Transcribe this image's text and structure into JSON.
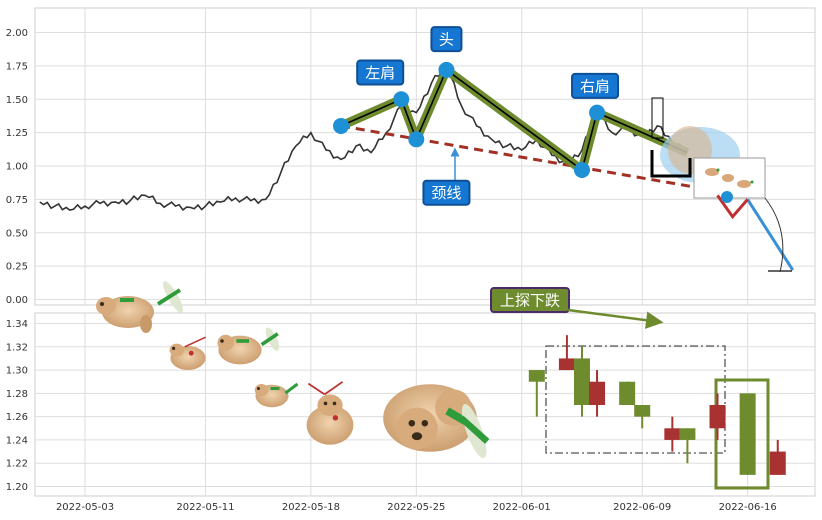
{
  "chart_data": [
    {
      "type": "line",
      "panel": "top",
      "title": "",
      "xlabel": "",
      "ylabel": "",
      "ylim": [
        0,
        2.2
      ],
      "y_ticks": [
        "0.00",
        "0.25",
        "0.50",
        "0.75",
        "1.00",
        "1.25",
        "1.50",
        "1.75",
        "2.00"
      ],
      "grid": true,
      "price_line_color": "#333333",
      "price_series": [
        {
          "x": "2022-04-30",
          "y": 0.73
        },
        {
          "x": "2022-05-01",
          "y": 0.7
        },
        {
          "x": "2022-05-02",
          "y": 0.67
        },
        {
          "x": "2022-05-03",
          "y": 0.7
        },
        {
          "x": "2022-05-04",
          "y": 0.72
        },
        {
          "x": "2022-05-05",
          "y": 0.73
        },
        {
          "x": "2022-05-06",
          "y": 0.74
        },
        {
          "x": "2022-05-07",
          "y": 0.78
        },
        {
          "x": "2022-05-08",
          "y": 0.72
        },
        {
          "x": "2022-05-09",
          "y": 0.7
        },
        {
          "x": "2022-05-10",
          "y": 0.69
        },
        {
          "x": "2022-05-11",
          "y": 0.7
        },
        {
          "x": "2022-05-12",
          "y": 0.73
        },
        {
          "x": "2022-05-13",
          "y": 0.76
        },
        {
          "x": "2022-05-14",
          "y": 0.74
        },
        {
          "x": "2022-05-15",
          "y": 0.75
        },
        {
          "x": "2022-05-16",
          "y": 0.95
        },
        {
          "x": "2022-05-17",
          "y": 1.15
        },
        {
          "x": "2022-05-18",
          "y": 1.25
        },
        {
          "x": "2022-05-19",
          "y": 1.12
        },
        {
          "x": "2022-05-20",
          "y": 1.05
        },
        {
          "x": "2022-05-21",
          "y": 1.15
        },
        {
          "x": "2022-05-22",
          "y": 1.1
        },
        {
          "x": "2022-05-23",
          "y": 1.25
        },
        {
          "x": "2022-05-24",
          "y": 1.45
        },
        {
          "x": "2022-05-25",
          "y": 1.4
        },
        {
          "x": "2022-05-26",
          "y": 1.62
        },
        {
          "x": "2022-05-27",
          "y": 1.75
        },
        {
          "x": "2022-05-28",
          "y": 1.45
        },
        {
          "x": "2022-05-29",
          "y": 1.3
        },
        {
          "x": "2022-05-30",
          "y": 1.2
        },
        {
          "x": "2022-05-31",
          "y": 1.15
        },
        {
          "x": "2022-06-01",
          "y": 1.12
        },
        {
          "x": "2022-06-02",
          "y": 1.2
        },
        {
          "x": "2022-06-03",
          "y": 1.08
        },
        {
          "x": "2022-06-04",
          "y": 1.02
        },
        {
          "x": "2022-06-05",
          "y": 1.12
        },
        {
          "x": "2022-06-06",
          "y": 1.4
        },
        {
          "x": "2022-06-07",
          "y": 1.25
        },
        {
          "x": "2022-06-08",
          "y": 1.28
        },
        {
          "x": "2022-06-09",
          "y": 1.22
        },
        {
          "x": "2022-06-10",
          "y": 1.3
        },
        {
          "x": "2022-06-11",
          "y": 1.18
        },
        {
          "x": "2022-06-12",
          "y": 1.1
        }
      ],
      "pattern_points": [
        {
          "x": "2022-05-20",
          "y": 1.3
        },
        {
          "x": "2022-05-24",
          "y": 1.5
        },
        {
          "x": "2022-05-25",
          "y": 1.2
        },
        {
          "x": "2022-05-27",
          "y": 1.72
        },
        {
          "x": "2022-06-05",
          "y": 0.97
        },
        {
          "x": "2022-06-06",
          "y": 1.4
        },
        {
          "x": "2022-06-12",
          "y": 1.1
        }
      ],
      "neckline": [
        {
          "x": "2022-05-20",
          "y": 1.3
        },
        {
          "x": "2022-06-12",
          "y": 0.8
        }
      ],
      "projection": [
        {
          "x": "2022-06-14",
          "y": 0.78
        },
        {
          "x": "2022-06-15",
          "y": 0.62
        },
        {
          "x": "2022-06-16",
          "y": 0.75
        },
        {
          "x": "2022-06-19",
          "y": 0.22
        }
      ],
      "annotations": [
        {
          "text": "左肩",
          "x": "2022-05-23",
          "y": 1.7
        },
        {
          "text": "头",
          "x": "2022-05-27",
          "y": 1.95
        },
        {
          "text": "右肩",
          "x": "2022-06-06",
          "y": 1.6
        },
        {
          "text": "颈线",
          "x": "2022-05-27",
          "y": 0.8
        }
      ],
      "colors": {
        "pattern": "#6e8b2e",
        "pattern_inner": "#000000",
        "marker": "#1e90d6",
        "neckline": "#a33025",
        "label_bg": "#1677d2",
        "projection": "#3a8fd6"
      }
    },
    {
      "type": "candlestick",
      "panel": "bottom",
      "title": "",
      "ylim": [
        1.19,
        1.35
      ],
      "y_ticks": [
        "1.20",
        "1.22",
        "1.24",
        "1.26",
        "1.28",
        "1.30",
        "1.32",
        "1.34"
      ],
      "x_ticks": [
        "2022-05-03",
        "2022-05-11",
        "2022-05-18",
        "2022-05-25",
        "2022-06-01",
        "2022-06-09",
        "2022-06-16"
      ],
      "grid": true,
      "candles": [
        {
          "x": "2022-06-02",
          "open": 1.29,
          "close": 1.3,
          "high": 1.3,
          "low": 1.26,
          "up": true
        },
        {
          "x": "2022-06-04",
          "open": 1.31,
          "close": 1.3,
          "high": 1.33,
          "low": 1.3,
          "up": false
        },
        {
          "x": "2022-06-05",
          "open": 1.31,
          "close": 1.27,
          "high": 1.32,
          "low": 1.26,
          "up": true
        },
        {
          "x": "2022-06-06",
          "open": 1.29,
          "close": 1.27,
          "high": 1.3,
          "low": 1.26,
          "up": false
        },
        {
          "x": "2022-06-08",
          "open": 1.29,
          "close": 1.27,
          "high": 1.29,
          "low": 1.27,
          "up": true
        },
        {
          "x": "2022-06-09",
          "open": 1.27,
          "close": 1.26,
          "high": 1.27,
          "low": 1.25,
          "up": true
        },
        {
          "x": "2022-06-11",
          "open": 1.25,
          "close": 1.24,
          "high": 1.26,
          "low": 1.23,
          "up": false
        },
        {
          "x": "2022-06-12",
          "open": 1.25,
          "close": 1.24,
          "high": 1.25,
          "low": 1.22,
          "up": true
        },
        {
          "x": "2022-06-14",
          "open": 1.27,
          "close": 1.25,
          "high": 1.28,
          "low": 1.24,
          "up": false
        },
        {
          "x": "2022-06-16",
          "open": 1.28,
          "close": 1.21,
          "high": 1.28,
          "low": 1.21,
          "up": true
        },
        {
          "x": "2022-06-18",
          "open": 1.23,
          "close": 1.21,
          "high": 1.24,
          "low": 1.21,
          "up": false
        }
      ],
      "annotations": [
        {
          "text": "上探下跌",
          "x": "2022-05-28",
          "y": 1.34
        }
      ],
      "colors": {
        "up": "#6e8b2e",
        "down": "#a83232",
        "label_bg": "#6e8b2e",
        "label_border": "#4a2a6a"
      }
    }
  ]
}
